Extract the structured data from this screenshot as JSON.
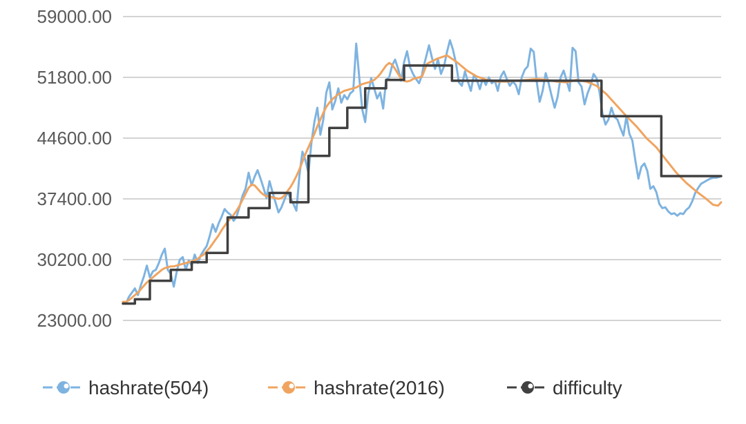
{
  "chart_data": {
    "type": "line",
    "title": "",
    "xlabel": "",
    "ylabel": "",
    "ylim": [
      23000,
      59000
    ],
    "yticks": [
      {
        "value": 59000,
        "label": "59000.00"
      },
      {
        "value": 51800,
        "label": "51800.00"
      },
      {
        "value": 44600,
        "label": "44600.00"
      },
      {
        "value": 37400,
        "label": "37400.00"
      },
      {
        "value": 30200,
        "label": "30200.00"
      },
      {
        "value": 23000,
        "label": "23000.00"
      }
    ],
    "grid": true,
    "legend_position": "bottom",
    "x": [
      0,
      3,
      6,
      9,
      12,
      15,
      18,
      21,
      24,
      27,
      30,
      33,
      36,
      39,
      42,
      45,
      48,
      51,
      54,
      57,
      60,
      63,
      66,
      69,
      72,
      75,
      78,
      81,
      84,
      87,
      90,
      93,
      96,
      99,
      102,
      105,
      108,
      111,
      114,
      117,
      120,
      123,
      126,
      129,
      132,
      135,
      138,
      141,
      144,
      147,
      150,
      153,
      156,
      159,
      162,
      165,
      168,
      171,
      174,
      177,
      180,
      183,
      186,
      189,
      192,
      195,
      198,
      201,
      204,
      207,
      210,
      213,
      216,
      219,
      222,
      225,
      228,
      231,
      234,
      237,
      240,
      243,
      246,
      249,
      252,
      255,
      258,
      261,
      264,
      267,
      270,
      273,
      276,
      279,
      282,
      285,
      288,
      291,
      294,
      297,
      300
    ],
    "series": [
      {
        "name": "hashrate(504)",
        "color": "#7eb3e0",
        "marker": "circle",
        "stroke_width": 3,
        "values": [
          25200,
          25000,
          25800,
          26300,
          26800,
          26000,
          27200,
          28200,
          29500,
          28100,
          28800,
          29000,
          29800,
          30800,
          31500,
          29000,
          28500,
          27000,
          28800,
          30200,
          30500,
          29000,
          30100,
          29500,
          30800,
          29800,
          30700,
          31300,
          31800,
          33000,
          34400,
          33500,
          34500,
          35300,
          36200,
          35800,
          35500,
          34800,
          35300,
          36500,
          37800,
          38600,
          40500,
          39000,
          40000,
          40800,
          39800,
          38700,
          37500,
          39500,
          38200,
          37000,
          35800,
          36400,
          37300,
          38200,
          37500,
          36800,
          36000,
          40200,
          43000,
          42000,
          40500,
          44000,
          46500,
          48200,
          45000,
          46800,
          50000,
          51200,
          48000,
          49000,
          50500,
          48800,
          49700,
          49200,
          49900,
          50200,
          55800,
          51800,
          48000,
          46500,
          49800,
          51700,
          50500,
          49300,
          50000,
          48100,
          51500,
          51800,
          53200,
          53900,
          52800,
          51400,
          53600,
          54900,
          53000,
          52200,
          51600,
          51100,
          52100
        ]
      },
      {
        "name": "hashrate(2016)",
        "color": "#f0a460",
        "marker": "circle",
        "stroke_width": 3,
        "values": [
          25200,
          25200,
          25400,
          25700,
          26000,
          26300,
          26700,
          27100,
          27500,
          27800,
          28100,
          28400,
          28700,
          29000,
          29200,
          29300,
          29400,
          29400,
          29500,
          29600,
          29700,
          29800,
          29900,
          30000,
          30100,
          30300,
          30600,
          30800,
          31200,
          31600,
          32100,
          32600,
          33100,
          33700,
          34200,
          34700,
          35100,
          35500,
          36000,
          36600,
          37300,
          38000,
          38700,
          39100,
          39000,
          38600,
          38200,
          37900,
          37700,
          37700,
          37600,
          37500,
          37400,
          37500,
          37800,
          38300,
          38800,
          39400,
          40100,
          40900,
          41800,
          42700,
          43500,
          44300,
          45100,
          46000,
          46800,
          47600,
          48300,
          48800,
          49200,
          49500,
          49800,
          50000,
          50200,
          50300,
          50400,
          50500,
          50600,
          50800,
          51000,
          51100,
          51200,
          51300,
          51500,
          51800,
          52200,
          52700,
          53200,
          53500,
          53300,
          52800,
          52200,
          51700,
          51400,
          51300,
          51400,
          51600,
          51700,
          51800,
          51900
        ]
      },
      {
        "name": "difficulty",
        "color": "#404040",
        "marker": "circle",
        "stroke_width": 3.5,
        "values": [
          25000,
          25000,
          25000,
          25000,
          25500,
          25500,
          25500,
          25500,
          25500,
          27700,
          27700,
          27700,
          27700,
          27700,
          27700,
          27700,
          29000,
          29000,
          29000,
          29000,
          29000,
          29000,
          29000,
          29900,
          29900,
          29900,
          29900,
          29900,
          31000,
          31000,
          31000,
          31000,
          31000,
          31000,
          31000,
          35200,
          35200,
          35200,
          35200,
          35200,
          35200,
          35200,
          36300,
          36300,
          36300,
          36300,
          36300,
          36300,
          36300,
          38100,
          38100,
          38100,
          38100,
          38100,
          38100,
          38100,
          37000,
          37000,
          37000,
          37000,
          37000,
          37000,
          42500,
          42500,
          42500,
          42500,
          42500,
          42500,
          42500,
          45800,
          45800,
          45800,
          45800,
          45800,
          45800,
          48200,
          48200,
          48200,
          48200,
          48200,
          48200,
          50500,
          50500,
          50500,
          50500,
          50500,
          50500,
          50500,
          51500,
          51500,
          51500,
          51500,
          51500,
          51500,
          53200,
          53200,
          53200,
          53200,
          53200,
          53200,
          53200
        ]
      }
    ],
    "series_tail": [
      {
        "name": "hashrate(504)",
        "x": [
          301,
          304,
          307,
          310,
          313,
          316,
          319,
          322,
          325,
          328,
          331,
          334,
          337,
          340,
          343,
          346,
          349,
          352,
          355,
          358,
          361,
          364,
          367,
          370,
          373,
          376,
          379,
          382,
          385,
          388,
          391,
          394,
          397,
          400,
          403,
          406,
          409,
          412,
          415,
          418,
          421,
          424,
          427,
          430,
          433,
          436,
          439,
          442,
          445,
          448,
          451,
          454,
          457,
          460,
          463,
          466,
          469,
          472,
          475,
          478,
          481,
          484,
          487,
          490,
          493,
          496,
          499,
          502,
          505,
          508,
          511,
          514,
          517,
          520,
          523,
          526,
          529,
          532,
          535,
          538,
          541,
          544,
          547,
          550,
          553,
          556,
          559,
          562,
          565,
          568,
          571,
          574,
          577,
          580,
          583,
          586,
          589,
          592,
          595,
          598,
          600
        ],
        "values": [
          52800,
          54200,
          55600,
          54100,
          52800,
          53900,
          52200,
          53100,
          54800,
          56200,
          55100,
          53500,
          51200,
          50800,
          52500,
          51300,
          50200,
          52100,
          51500,
          50400,
          51700,
          50900,
          51800,
          51100,
          51400,
          50200,
          51900,
          52500,
          51600,
          50800,
          51300,
          50900,
          49800,
          51800,
          52700,
          53100,
          55200,
          54800,
          51300,
          48900,
          50200,
          52300,
          51100,
          49600,
          48200,
          49500,
          51800,
          52600,
          51400,
          50200,
          55300,
          54900,
          51200,
          50700,
          48600,
          49900,
          50800,
          52200,
          51700,
          50100,
          47500,
          46200,
          46800,
          48200,
          47100,
          46800,
          45800,
          44900,
          47200,
          45100,
          44300,
          41900,
          39800,
          41200,
          41600,
          40700,
          38600,
          38900,
          38200,
          36800,
          36300,
          36400,
          35900,
          35600,
          35700,
          35400,
          35700,
          35600,
          36100,
          36400,
          37100,
          38100,
          38700,
          39200,
          39400,
          39600,
          39800,
          39900,
          39900,
          40000,
          40100
        ]
      }
    ],
    "legend": [
      {
        "name": "hashrate(504)",
        "color": "#7eb3e0"
      },
      {
        "name": "hashrate(2016)",
        "color": "#f0a460"
      },
      {
        "name": "difficulty",
        "color": "#404040"
      }
    ]
  }
}
